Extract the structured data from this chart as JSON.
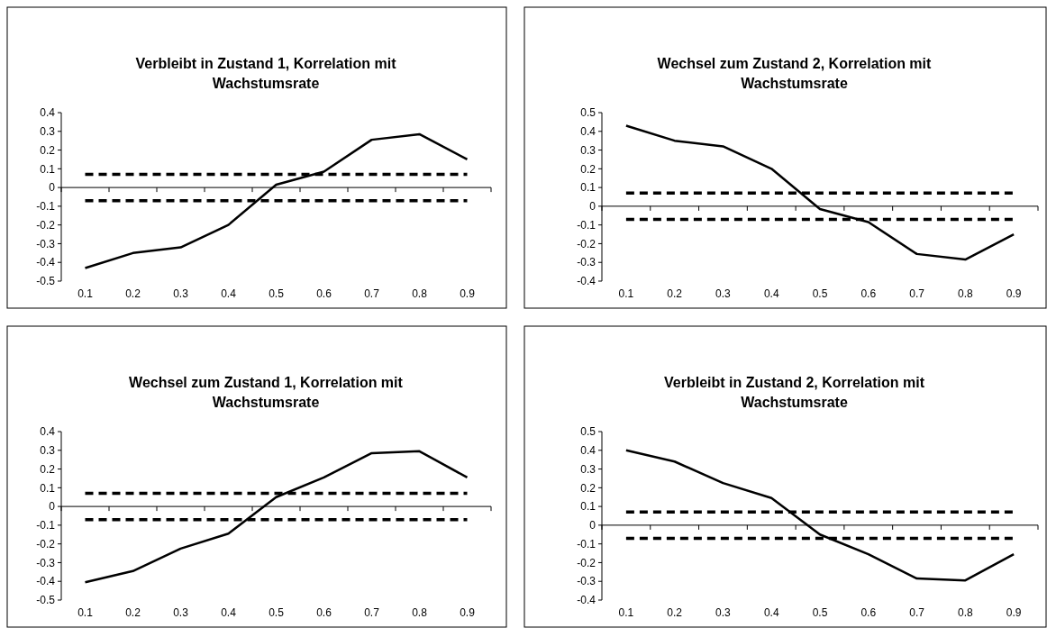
{
  "chart_data": [
    {
      "type": "line",
      "title": "Verbleibt in Zustand 1, Korrelation mit Wachstumsrate",
      "categories": [
        "0.1",
        "0.2",
        "0.3",
        "0.4",
        "0.5",
        "0.6",
        "0.7",
        "0.8",
        "0.9"
      ],
      "series": [
        {
          "color": "#000000",
          "values": [
            -0.43,
            -0.35,
            -0.32,
            -0.2,
            0.015,
            0.085,
            0.255,
            0.285,
            0.15
          ]
        }
      ],
      "ylim": [
        -0.5,
        0.4
      ],
      "yticks": [
        -0.5,
        -0.4,
        -0.3,
        -0.2,
        -0.1,
        0,
        0.1,
        0.2,
        0.3,
        0.4
      ],
      "ref_lines": [
        {
          "axis": "y",
          "value": 0.07,
          "color": "#000000",
          "line_style": "dashed"
        },
        {
          "axis": "y",
          "value": -0.07,
          "color": "#000000",
          "line_style": "dashed"
        }
      ]
    },
    {
      "type": "line",
      "title": "Wechsel zum Zustand 2, Korrelation mit Wachstumsrate",
      "categories": [
        "0.1",
        "0.2",
        "0.3",
        "0.4",
        "0.5",
        "0.6",
        "0.7",
        "0.8",
        "0.9"
      ],
      "series": [
        {
          "color": "#000000",
          "values": [
            0.43,
            0.35,
            0.32,
            0.2,
            -0.015,
            -0.085,
            -0.255,
            -0.285,
            -0.15
          ]
        }
      ],
      "ylim": [
        -0.4,
        0.5
      ],
      "yticks": [
        -0.4,
        -0.3,
        -0.2,
        -0.1,
        0,
        0.1,
        0.2,
        0.3,
        0.4,
        0.5
      ],
      "ref_lines": [
        {
          "axis": "y",
          "value": 0.07,
          "color": "#000000",
          "line_style": "dashed"
        },
        {
          "axis": "y",
          "value": -0.07,
          "color": "#000000",
          "line_style": "dashed"
        }
      ]
    },
    {
      "type": "line",
      "title": "Wechsel zum Zustand 1, Korrelation mit Wachstumsrate",
      "categories": [
        "0.1",
        "0.2",
        "0.3",
        "0.4",
        "0.5",
        "0.6",
        "0.7",
        "0.8",
        "0.9"
      ],
      "series": [
        {
          "color": "#000000",
          "values": [
            -0.405,
            -0.345,
            -0.225,
            -0.145,
            0.05,
            0.155,
            0.285,
            0.295,
            0.155
          ]
        }
      ],
      "ylim": [
        -0.5,
        0.4
      ],
      "yticks": [
        -0.5,
        -0.4,
        -0.3,
        -0.2,
        -0.1,
        0,
        0.1,
        0.2,
        0.3,
        0.4
      ],
      "ref_lines": [
        {
          "axis": "y",
          "value": 0.07,
          "color": "#000000",
          "line_style": "dashed"
        },
        {
          "axis": "y",
          "value": -0.07,
          "color": "#000000",
          "line_style": "dashed"
        }
      ]
    },
    {
      "type": "line",
      "title": "Verbleibt in Zustand 2, Korrelation mit Wachstumsrate",
      "categories": [
        "0.1",
        "0.2",
        "0.3",
        "0.4",
        "0.5",
        "0.6",
        "0.7",
        "0.8",
        "0.9"
      ],
      "series": [
        {
          "color": "#000000",
          "values": [
            0.4,
            0.34,
            0.225,
            0.145,
            -0.05,
            -0.155,
            -0.285,
            -0.295,
            -0.155
          ]
        }
      ],
      "ylim": [
        -0.4,
        0.5
      ],
      "yticks": [
        -0.4,
        -0.3,
        -0.2,
        -0.1,
        0,
        0.1,
        0.2,
        0.3,
        0.4,
        0.5
      ],
      "ref_lines": [
        {
          "axis": "y",
          "value": 0.07,
          "color": "#000000",
          "line_style": "dashed"
        },
        {
          "axis": "y",
          "value": -0.07,
          "color": "#000000",
          "line_style": "dashed"
        }
      ]
    }
  ]
}
